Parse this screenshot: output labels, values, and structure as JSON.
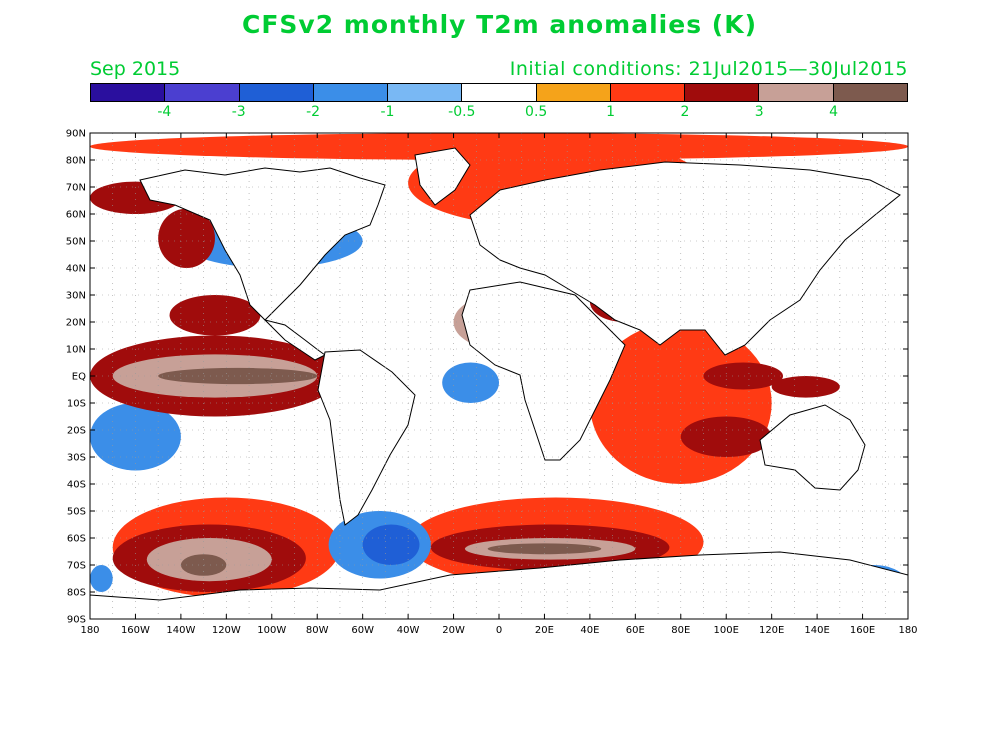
{
  "title": "CFSv2 monthly T2m anomalies (K)",
  "valid_month": "Sep 2015",
  "initial_conditions": "Initial conditions: 21Jul2015—30Jul2015",
  "colors": {
    "title_text": "#00cc33",
    "ocean_land_default": "#ffffff",
    "coastline": "#000000"
  },
  "colorbar": {
    "colors": [
      "#2a0f9e",
      "#4b3fd0",
      "#1f5fd6",
      "#3b8ee8",
      "#79b8f4",
      "#ffffff",
      "#f5a31a",
      "#ff3a14",
      "#a00c0c",
      "#c7a097",
      "#7d5a4e"
    ],
    "labels": [
      "-4",
      "-3",
      "-2",
      "-1",
      "-0.5",
      "0.5",
      "1",
      "2",
      "3",
      "4"
    ]
  },
  "map": {
    "lat_labels": [
      "90N",
      "80N",
      "70N",
      "60N",
      "50N",
      "40N",
      "30N",
      "20N",
      "10N",
      "EQ",
      "10S",
      "20S",
      "30S",
      "40S",
      "50S",
      "60S",
      "70S",
      "80S",
      "90S"
    ],
    "lon_labels": [
      "180",
      "160W",
      "140W",
      "120W",
      "100W",
      "80W",
      "60W",
      "40W",
      "20W",
      "0",
      "20E",
      "40E",
      "60E",
      "80E",
      "100E",
      "120E",
      "140E",
      "160E",
      "180"
    ]
  },
  "chart_data": {
    "type": "heatmap",
    "title": "CFSv2 monthly T2m anomalies (K)",
    "xlabel": "",
    "ylabel": "",
    "xlim": [
      -180,
      180
    ],
    "ylim": [
      -90,
      90
    ],
    "contour_levels": [
      -4,
      -3,
      -2,
      -1,
      -0.5,
      0.5,
      1,
      2,
      3,
      4
    ],
    "units": "K",
    "grid": true,
    "regions": [
      {
        "lon": [
          -150,
          -80
        ],
        "lat": [
          -3,
          3
        ],
        "level": 4
      },
      {
        "lon": [
          -170,
          -80
        ],
        "lat": [
          -8,
          8
        ],
        "level": 3
      },
      {
        "lon": [
          -180,
          -70
        ],
        "lat": [
          -15,
          15
        ],
        "level": 2
      },
      {
        "lon": [
          -145,
          -105
        ],
        "lat": [
          15,
          30
        ],
        "level": 2
      },
      {
        "lon": [
          -150,
          -125
        ],
        "lat": [
          40,
          62
        ],
        "level": 2
      },
      {
        "lon": [
          -180,
          -140
        ],
        "lat": [
          60,
          72
        ],
        "level": 2
      },
      {
        "lon": [
          -140,
          -120
        ],
        "lat": [
          -74,
          -66
        ],
        "level": 4
      },
      {
        "lon": [
          -155,
          -100
        ],
        "lat": [
          -76,
          -60
        ],
        "level": 3
      },
      {
        "lon": [
          -170,
          -85
        ],
        "lat": [
          -80,
          -55
        ],
        "level": 2
      },
      {
        "lon": [
          -170,
          -70
        ],
        "lat": [
          -82,
          -45
        ],
        "level": 1
      },
      {
        "lon": [
          -5,
          45
        ],
        "lat": [
          -66,
          -62
        ],
        "level": 4
      },
      {
        "lon": [
          -15,
          60
        ],
        "lat": [
          -68,
          -60
        ],
        "level": 3
      },
      {
        "lon": [
          -30,
          75
        ],
        "lat": [
          -72,
          -55
        ],
        "level": 2
      },
      {
        "lon": [
          -40,
          90
        ],
        "lat": [
          -78,
          -45
        ],
        "level": 1
      },
      {
        "lon": [
          -60,
          -35
        ],
        "lat": [
          -70,
          -55
        ],
        "level": -2
      },
      {
        "lon": [
          -75,
          -30
        ],
        "lat": [
          -75,
          -50
        ],
        "level": -1
      },
      {
        "lon": [
          -140,
          -60
        ],
        "lat": [
          40,
          60
        ],
        "level": -1
      },
      {
        "lon": [
          -20,
          20
        ],
        "lat": [
          10,
          30
        ],
        "level": 3
      },
      {
        "lon": [
          40,
          70
        ],
        "lat": [
          20,
          35
        ],
        "level": 2
      },
      {
        "lon": [
          90,
          125
        ],
        "lat": [
          -5,
          5
        ],
        "level": 2
      },
      {
        "lon": [
          120,
          150
        ],
        "lat": [
          -8,
          0
        ],
        "level": 2
      },
      {
        "lon": [
          80,
          120
        ],
        "lat": [
          -30,
          -15
        ],
        "level": 2
      },
      {
        "lon": [
          40,
          120
        ],
        "lat": [
          -40,
          20
        ],
        "level": 1
      },
      {
        "lon": [
          -40,
          90
        ],
        "lat": [
          55,
          88
        ],
        "level": 1
      },
      {
        "lon": [
          -180,
          180
        ],
        "lat": [
          80,
          90
        ],
        "level": 1
      },
      {
        "lon": [
          150,
          180
        ],
        "lat": [
          -85,
          -70
        ],
        "level": -1
      },
      {
        "lon": [
          -180,
          -170
        ],
        "lat": [
          -80,
          -70
        ],
        "level": -1
      },
      {
        "lon": [
          -180,
          -140
        ],
        "lat": [
          -35,
          -10
        ],
        "level": -1
      },
      {
        "lon": [
          -25,
          0
        ],
        "lat": [
          -10,
          5
        ],
        "level": -1
      }
    ]
  }
}
